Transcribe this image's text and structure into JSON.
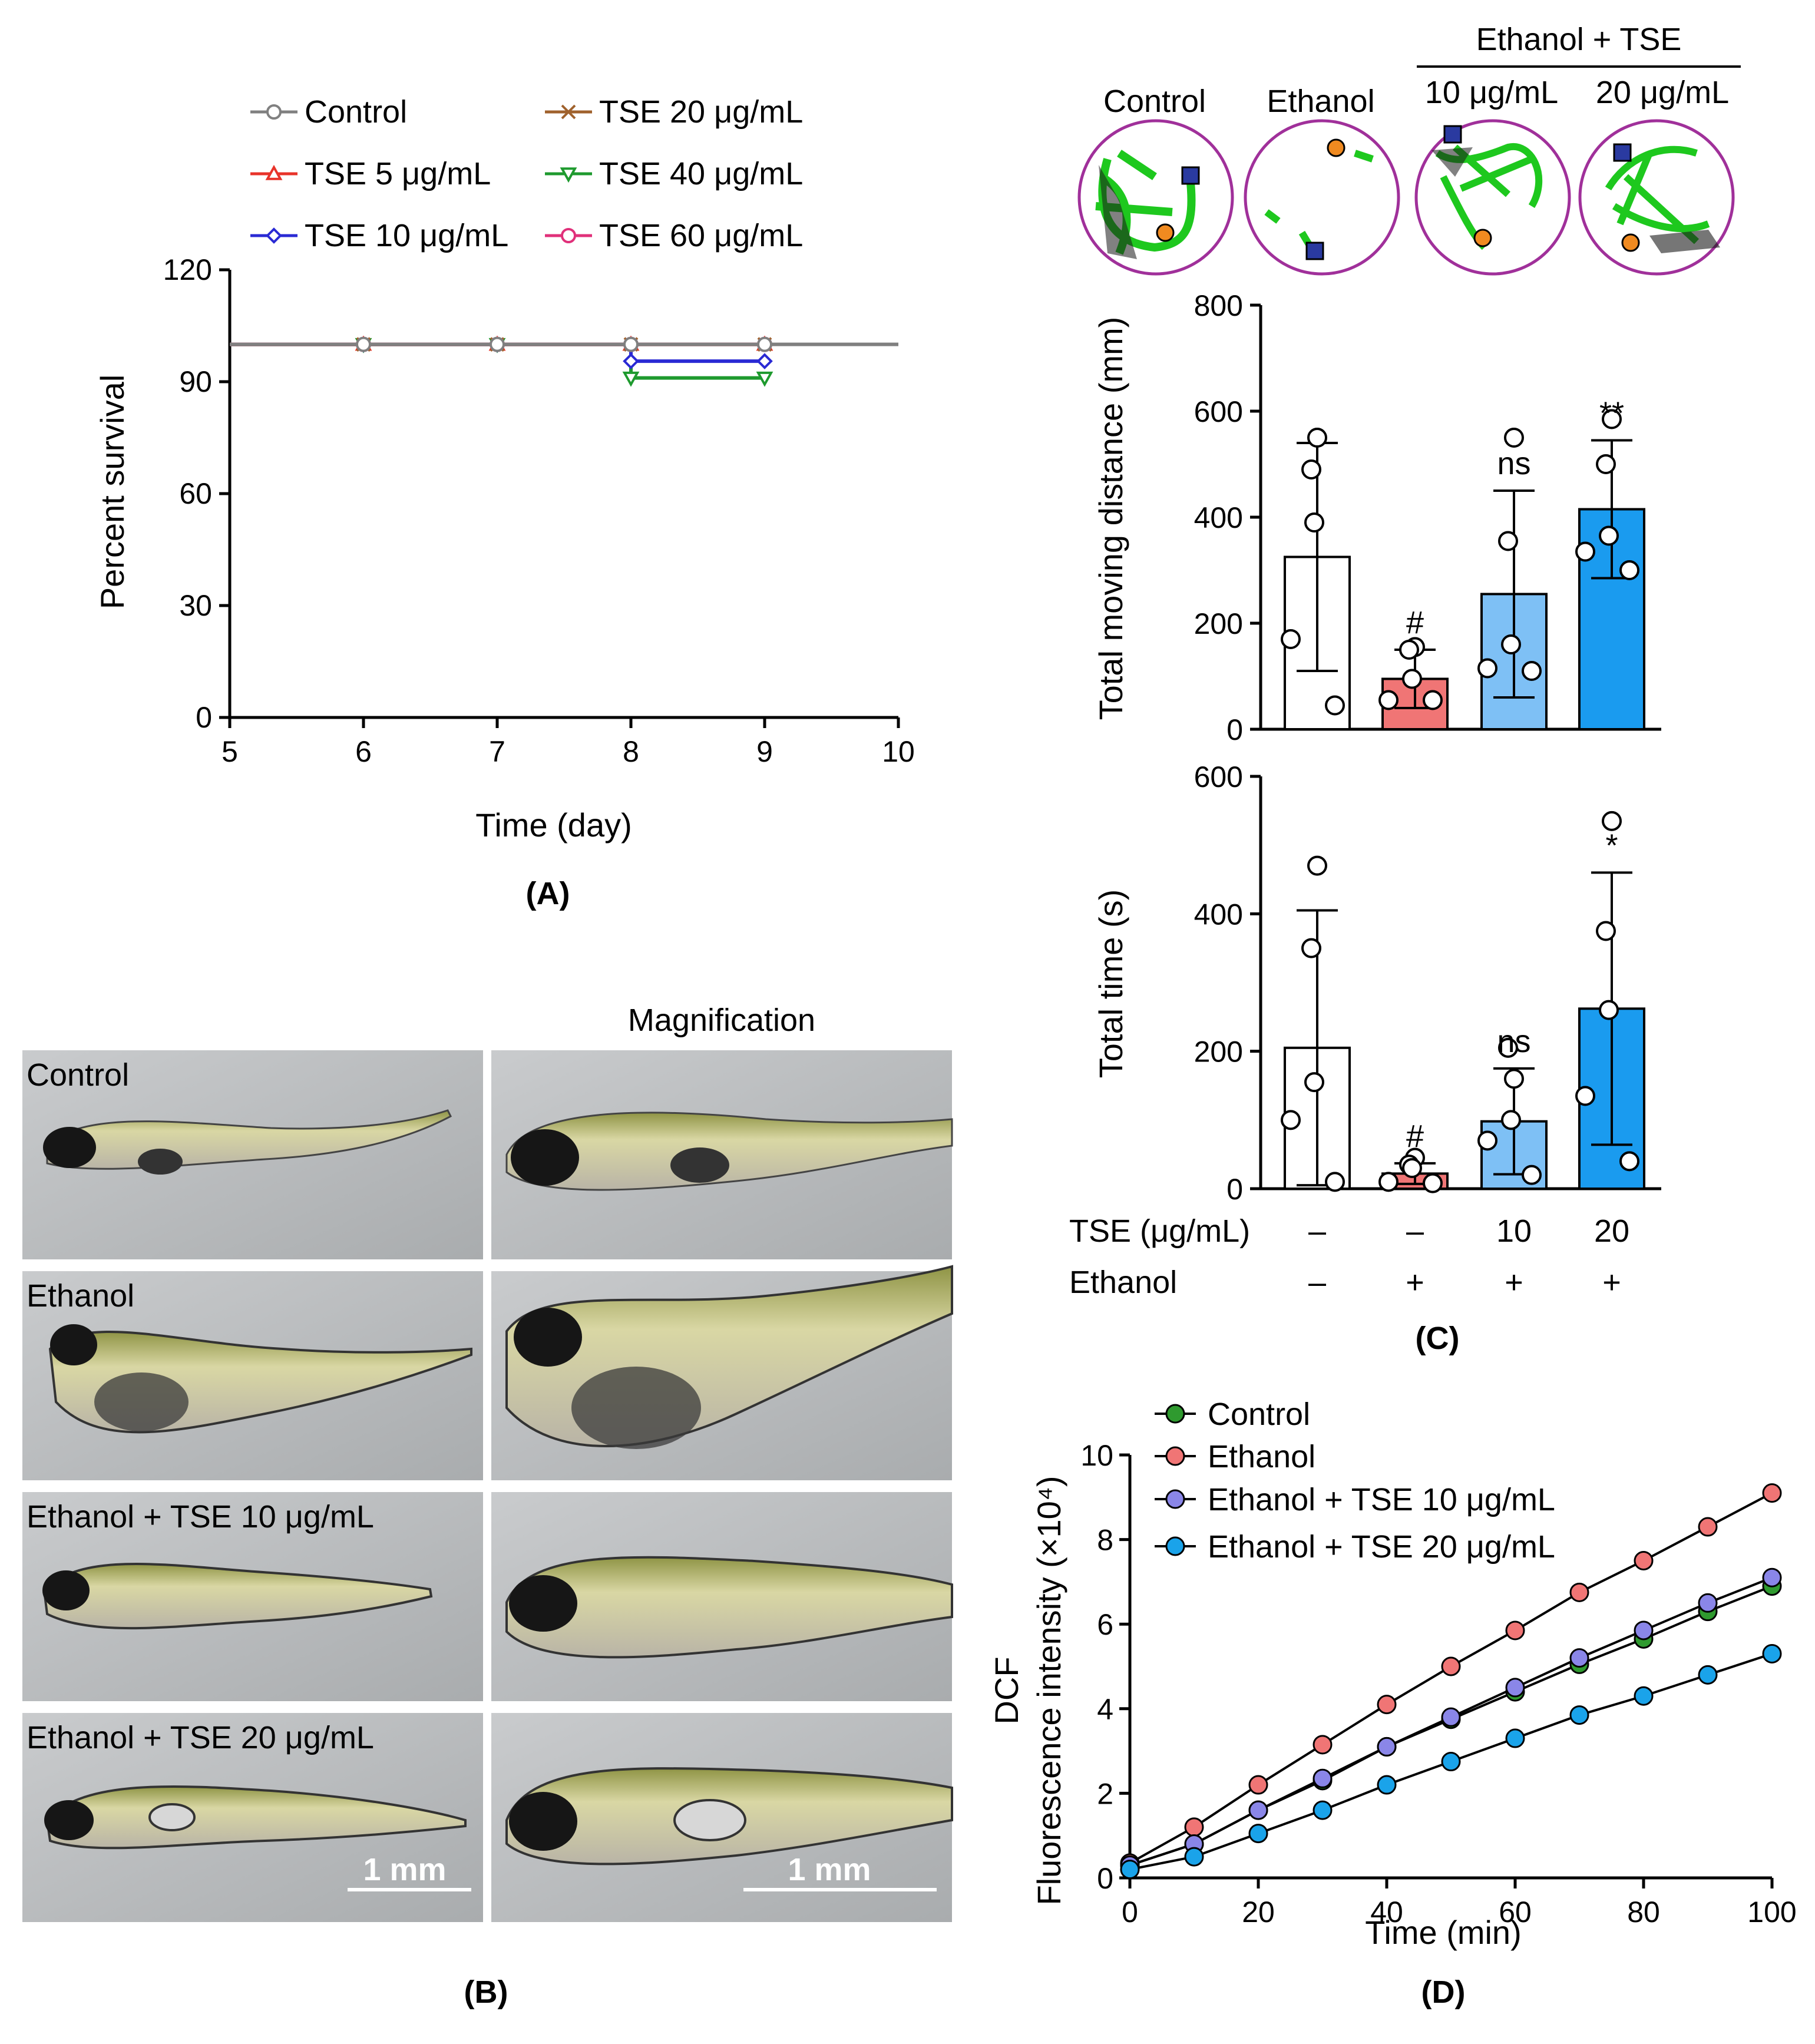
{
  "panels": {
    "a": "(A)",
    "b": "(B)",
    "c": "(C)",
    "d": "(D)"
  },
  "chart_data": [
    {
      "id": "A",
      "type": "line",
      "xlabel": "Time (day)",
      "ylabel": "Percent survival",
      "xlim": [
        5,
        10
      ],
      "ylim": [
        0,
        120
      ],
      "xticks": [
        "5",
        "6",
        "7",
        "8",
        "9",
        "10"
      ],
      "yticks": [
        "0",
        "30",
        "60",
        "90",
        "120"
      ],
      "series": [
        {
          "name": "Control",
          "color": "#808080",
          "marker": "circle",
          "x": [
            5,
            6,
            7,
            8,
            9,
            10
          ],
          "y": [
            100,
            100,
            100,
            100,
            100,
            100
          ]
        },
        {
          "name": "TSE 5 μg/mL",
          "color": "#e8332a",
          "marker": "triangle-up",
          "x": [
            5,
            6,
            7,
            8,
            9
          ],
          "y": [
            100,
            100,
            100,
            100,
            100
          ]
        },
        {
          "name": "TSE 10 μg/mL",
          "color": "#2a2ad4",
          "marker": "diamond",
          "x": [
            5,
            6,
            7,
            8,
            9
          ],
          "y": [
            100,
            100,
            100,
            95.5,
            95.5
          ]
        },
        {
          "name": "TSE 20 μg/mL",
          "color": "#a0622d",
          "marker": "x",
          "x": [
            5,
            6,
            7,
            8,
            9
          ],
          "y": [
            100,
            100,
            100,
            100,
            100
          ]
        },
        {
          "name": "TSE 40 μg/mL",
          "color": "#1e9a2e",
          "marker": "triangle-down",
          "x": [
            5,
            6,
            7,
            8,
            9
          ],
          "y": [
            100,
            100,
            100,
            91,
            91
          ]
        },
        {
          "name": "TSE 60 μg/mL",
          "color": "#e0307a",
          "marker": "circle",
          "x": [
            5,
            6,
            7,
            8,
            9
          ],
          "y": [
            100,
            100,
            100,
            100,
            100
          ]
        }
      ]
    },
    {
      "id": "C-top",
      "type": "bar",
      "ylabel": "Total moving distance (mm)",
      "ylim": [
        0,
        800
      ],
      "yticks": [
        "0",
        "200",
        "400",
        "600",
        "800"
      ],
      "categories": [
        "Control",
        "Ethanol",
        "Ethanol + TSE 10 μg/mL",
        "Ethanol + TSE 20 μg/mL"
      ],
      "values": [
        325,
        95,
        255,
        415
      ],
      "sd": [
        215,
        55,
        195,
        130
      ],
      "points": [
        [
          550,
          490,
          390,
          170,
          45
        ],
        [
          155,
          150,
          95,
          55,
          55
        ],
        [
          550,
          355,
          160,
          115,
          110
        ],
        [
          585,
          500,
          365,
          335,
          300
        ]
      ],
      "annotations": [
        "",
        "#",
        "ns",
        "**"
      ],
      "colors": [
        "#ffffff",
        "#f07575",
        "#7ec0f5",
        "#1a9bef"
      ]
    },
    {
      "id": "C-bottom",
      "type": "bar",
      "ylabel": "Total time (s)",
      "ylim": [
        0,
        600
      ],
      "yticks": [
        "0",
        "200",
        "400",
        "600"
      ],
      "categories": [
        "Control",
        "Ethanol",
        "Ethanol + TSE 10 μg/mL",
        "Ethanol + TSE 20 μg/mL"
      ],
      "values": [
        205,
        22,
        98,
        262
      ],
      "sd": [
        200,
        15,
        77,
        198
      ],
      "points": [
        [
          470,
          350,
          155,
          100,
          10
        ],
        [
          45,
          35,
          30,
          10,
          8
        ],
        [
          160,
          205,
          100,
          70,
          20
        ],
        [
          535,
          375,
          260,
          135,
          40
        ]
      ],
      "annotations": [
        "",
        "#",
        "ns",
        "*"
      ],
      "colors": [
        "#ffffff",
        "#f07575",
        "#7ec0f5",
        "#1a9bef"
      ],
      "condition_rows": [
        {
          "label": "TSE (μg/mL)",
          "values": [
            "–",
            "–",
            "10",
            "20"
          ]
        },
        {
          "label": "Ethanol",
          "values": [
            "–",
            "+",
            "+",
            "+"
          ]
        }
      ]
    },
    {
      "id": "D",
      "type": "line",
      "xlabel": "Time (min)",
      "ylabel_line1": "DCF",
      "ylabel_line2": "Fluorescence intensity (×10⁴)",
      "xlim": [
        0,
        100
      ],
      "ylim": [
        0,
        10
      ],
      "xticks": [
        "0",
        "20",
        "40",
        "60",
        "80",
        "100"
      ],
      "yticks": [
        "0",
        "2",
        "4",
        "6",
        "8",
        "10"
      ],
      "x": [
        0,
        10,
        20,
        30,
        40,
        50,
        60,
        70,
        80,
        90,
        100
      ],
      "series": [
        {
          "name": "Control",
          "color": "#2f9a2f",
          "values": [
            0.3,
            0.8,
            1.6,
            2.3,
            3.1,
            3.75,
            4.4,
            5.05,
            5.65,
            6.3,
            6.9
          ]
        },
        {
          "name": "Ethanol",
          "color": "#f07575",
          "values": [
            0.35,
            1.2,
            2.2,
            3.15,
            4.1,
            5.0,
            5.85,
            6.75,
            7.5,
            8.3,
            9.1
          ]
        },
        {
          "name": "Ethanol + TSE 10 μg/mL",
          "color": "#8a86e8",
          "values": [
            0.3,
            0.8,
            1.6,
            2.35,
            3.1,
            3.8,
            4.5,
            5.2,
            5.85,
            6.5,
            7.1
          ]
        },
        {
          "name": "Ethanol + TSE 20 μg/mL",
          "color": "#1aa3ea",
          "values": [
            0.2,
            0.5,
            1.05,
            1.6,
            2.2,
            2.75,
            3.3,
            3.85,
            4.3,
            4.8,
            5.3
          ]
        }
      ]
    }
  ],
  "track_panel": {
    "labels": [
      "Control",
      "Ethanol",
      "10 μg/mL",
      "20 μg/mL"
    ],
    "group_label": "Ethanol + TSE"
  },
  "images_b": {
    "header": "Magnification",
    "rows": [
      "Control",
      "Ethanol",
      "Ethanol + TSE 10 μg/mL",
      "Ethanol + TSE 20 μg/mL"
    ],
    "scale_bar": "1 mm"
  }
}
